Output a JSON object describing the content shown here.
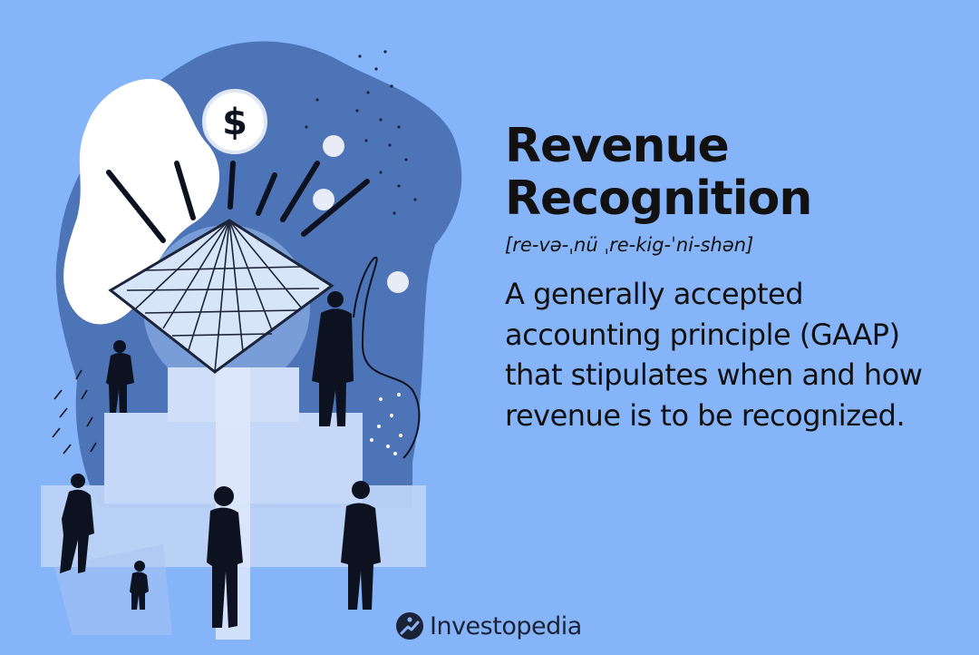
{
  "title": {
    "line1": "Revenue",
    "line2": "Recognition"
  },
  "pronunciation": "[re-və-ˌnü ˌre-kig-ˈni-shən]",
  "definition": "A generally accepted accounting principle (GAAP) that stipulates when and how revenue is to be recognized.",
  "coin_symbol": "$",
  "brand": {
    "name": "Investopedia",
    "icon": "investopedia-logo-icon"
  },
  "colors": {
    "background": "#86b4f9",
    "blob": "#4c74b7",
    "text": "#111111",
    "silhouette": "#0d1220"
  }
}
